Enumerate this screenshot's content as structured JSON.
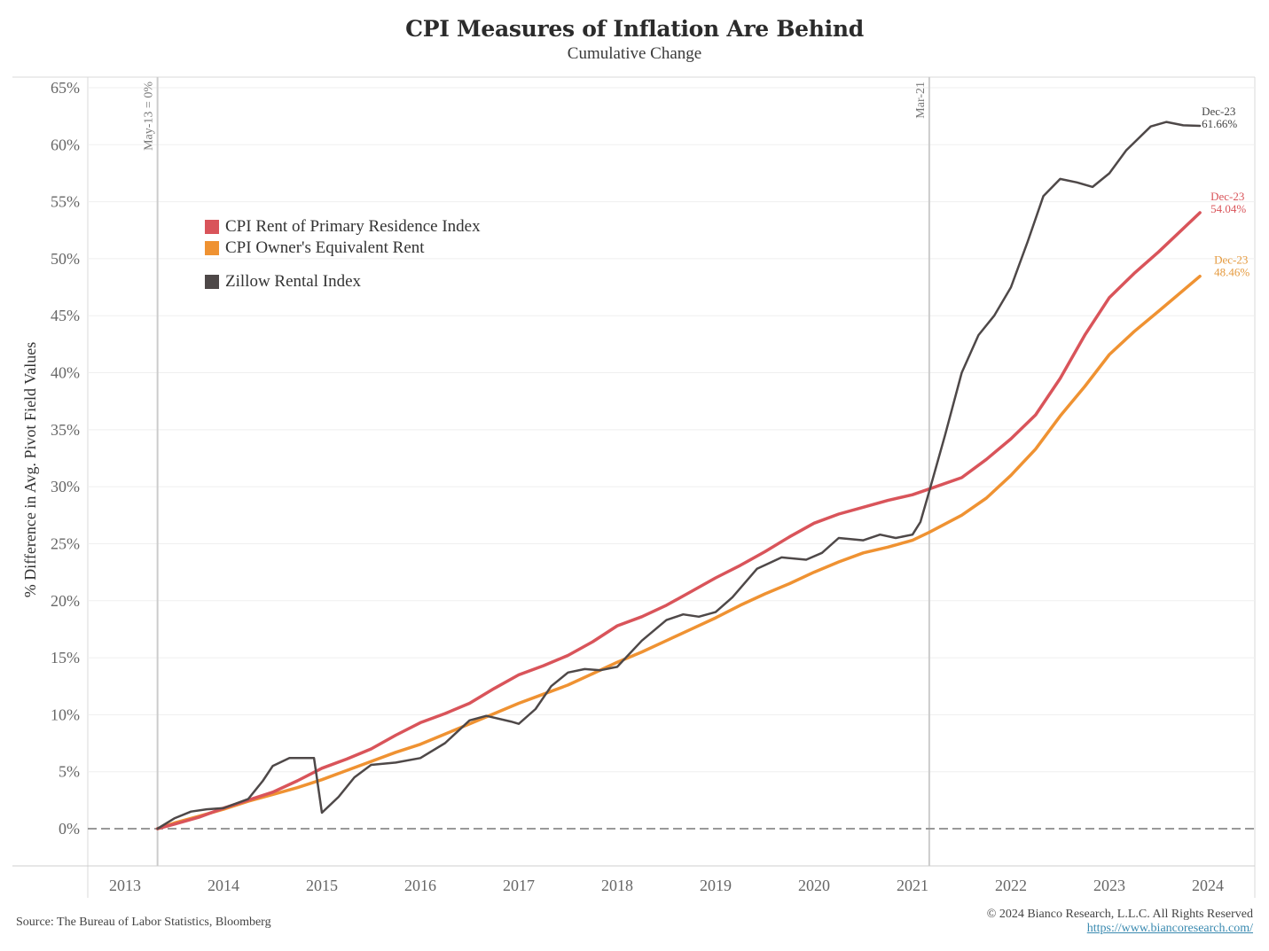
{
  "chart_data": {
    "type": "line",
    "title": "CPI Measures of Inflation Are Behind",
    "subtitle": "Cumulative Change",
    "xlabel": "",
    "ylabel": "% Difference in Avg. Pivot Field Values",
    "ylim": [
      0,
      65
    ],
    "xlim": [
      2013.0,
      2024.5
    ],
    "yticks": [
      0,
      5,
      10,
      15,
      20,
      25,
      30,
      35,
      40,
      45,
      50,
      55,
      60,
      65
    ],
    "ytick_labels": [
      "0%",
      "5%",
      "10%",
      "15%",
      "20%",
      "25%",
      "30%",
      "35%",
      "40%",
      "45%",
      "50%",
      "55%",
      "60%",
      "65%"
    ],
    "xticks": [
      2013,
      2014,
      2015,
      2016,
      2017,
      2018,
      2019,
      2020,
      2021,
      2022,
      2023,
      2024
    ],
    "xtick_labels": [
      "2013",
      "2014",
      "2015",
      "2016",
      "2017",
      "2018",
      "2019",
      "2020",
      "2021",
      "2022",
      "2023",
      "2024"
    ],
    "grid": true,
    "legend_position": "top-left",
    "reference_lines": [
      {
        "x": 2013.33,
        "label": "May-13 = 0%"
      },
      {
        "x": 2021.17,
        "label": "Mar-21"
      }
    ],
    "zero_line": {
      "y": 0,
      "style": "dashed"
    },
    "series": [
      {
        "name": "CPI Rent of Primary Residence Index",
        "color": "#d9545a",
        "end_label": {
          "date": "Dec-23",
          "value": "54.04%"
        },
        "points": [
          [
            2013.33,
            0
          ],
          [
            2013.5,
            0.4
          ],
          [
            2013.75,
            1.0
          ],
          [
            2014.0,
            1.8
          ],
          [
            2014.25,
            2.5
          ],
          [
            2014.5,
            3.2
          ],
          [
            2014.75,
            4.2
          ],
          [
            2015.0,
            5.3
          ],
          [
            2015.25,
            6.1
          ],
          [
            2015.5,
            7.0
          ],
          [
            2015.75,
            8.2
          ],
          [
            2016.0,
            9.3
          ],
          [
            2016.25,
            10.1
          ],
          [
            2016.5,
            11.0
          ],
          [
            2016.75,
            12.3
          ],
          [
            2017.0,
            13.5
          ],
          [
            2017.25,
            14.3
          ],
          [
            2017.5,
            15.2
          ],
          [
            2017.75,
            16.4
          ],
          [
            2018.0,
            17.8
          ],
          [
            2018.25,
            18.6
          ],
          [
            2018.5,
            19.6
          ],
          [
            2018.75,
            20.8
          ],
          [
            2019.0,
            22.0
          ],
          [
            2019.25,
            23.1
          ],
          [
            2019.5,
            24.3
          ],
          [
            2019.75,
            25.6
          ],
          [
            2020.0,
            26.8
          ],
          [
            2020.25,
            27.6
          ],
          [
            2020.5,
            28.2
          ],
          [
            2020.75,
            28.8
          ],
          [
            2021.0,
            29.3
          ],
          [
            2021.17,
            29.8
          ],
          [
            2021.5,
            30.8
          ],
          [
            2021.75,
            32.4
          ],
          [
            2022.0,
            34.2
          ],
          [
            2022.25,
            36.3
          ],
          [
            2022.5,
            39.5
          ],
          [
            2022.75,
            43.3
          ],
          [
            2023.0,
            46.6
          ],
          [
            2023.25,
            48.7
          ],
          [
            2023.5,
            50.6
          ],
          [
            2023.92,
            54.04
          ]
        ]
      },
      {
        "name": "CPI Owner's Equivalent Rent",
        "color": "#ef9232",
        "end_label": {
          "date": "Dec-23",
          "value": "48.46%"
        },
        "points": [
          [
            2013.33,
            0
          ],
          [
            2013.5,
            0.5
          ],
          [
            2013.75,
            1.1
          ],
          [
            2014.0,
            1.7
          ],
          [
            2014.25,
            2.4
          ],
          [
            2014.5,
            3.0
          ],
          [
            2014.75,
            3.6
          ],
          [
            2015.0,
            4.3
          ],
          [
            2015.25,
            5.1
          ],
          [
            2015.5,
            5.9
          ],
          [
            2015.75,
            6.7
          ],
          [
            2016.0,
            7.4
          ],
          [
            2016.25,
            8.3
          ],
          [
            2016.5,
            9.2
          ],
          [
            2016.75,
            10.1
          ],
          [
            2017.0,
            11.0
          ],
          [
            2017.25,
            11.8
          ],
          [
            2017.5,
            12.6
          ],
          [
            2017.75,
            13.6
          ],
          [
            2018.0,
            14.6
          ],
          [
            2018.25,
            15.5
          ],
          [
            2018.5,
            16.5
          ],
          [
            2018.75,
            17.5
          ],
          [
            2019.0,
            18.5
          ],
          [
            2019.25,
            19.6
          ],
          [
            2019.5,
            20.6
          ],
          [
            2019.75,
            21.5
          ],
          [
            2020.0,
            22.5
          ],
          [
            2020.25,
            23.4
          ],
          [
            2020.5,
            24.2
          ],
          [
            2020.75,
            24.7
          ],
          [
            2021.0,
            25.3
          ],
          [
            2021.17,
            26.0
          ],
          [
            2021.5,
            27.5
          ],
          [
            2021.75,
            29.0
          ],
          [
            2022.0,
            31.0
          ],
          [
            2022.25,
            33.3
          ],
          [
            2022.5,
            36.2
          ],
          [
            2022.75,
            38.8
          ],
          [
            2023.0,
            41.6
          ],
          [
            2023.25,
            43.6
          ],
          [
            2023.5,
            45.4
          ],
          [
            2023.92,
            48.46
          ]
        ]
      },
      {
        "name": "Zillow Rental Index",
        "color": "#4e4848",
        "end_label": {
          "date": "Dec-23",
          "value": "61.66%"
        },
        "points": [
          [
            2013.33,
            0
          ],
          [
            2013.5,
            0.9
          ],
          [
            2013.67,
            1.5
          ],
          [
            2013.83,
            1.7
          ],
          [
            2014.0,
            1.8
          ],
          [
            2014.25,
            2.6
          ],
          [
            2014.4,
            4.2
          ],
          [
            2014.5,
            5.5
          ],
          [
            2014.67,
            6.2
          ],
          [
            2014.83,
            6.2
          ],
          [
            2014.92,
            6.2
          ],
          [
            2015.0,
            1.4
          ],
          [
            2015.17,
            2.8
          ],
          [
            2015.33,
            4.5
          ],
          [
            2015.5,
            5.6
          ],
          [
            2015.75,
            5.8
          ],
          [
            2016.0,
            6.2
          ],
          [
            2016.25,
            7.5
          ],
          [
            2016.5,
            9.5
          ],
          [
            2016.67,
            9.9
          ],
          [
            2016.92,
            9.4
          ],
          [
            2017.0,
            9.2
          ],
          [
            2017.17,
            10.5
          ],
          [
            2017.33,
            12.5
          ],
          [
            2017.5,
            13.7
          ],
          [
            2017.67,
            14.0
          ],
          [
            2017.83,
            13.9
          ],
          [
            2018.0,
            14.2
          ],
          [
            2018.25,
            16.5
          ],
          [
            2018.5,
            18.3
          ],
          [
            2018.67,
            18.8
          ],
          [
            2018.83,
            18.6
          ],
          [
            2019.0,
            19.0
          ],
          [
            2019.17,
            20.3
          ],
          [
            2019.42,
            22.8
          ],
          [
            2019.67,
            23.8
          ],
          [
            2019.92,
            23.6
          ],
          [
            2020.08,
            24.2
          ],
          [
            2020.25,
            25.5
          ],
          [
            2020.5,
            25.3
          ],
          [
            2020.67,
            25.8
          ],
          [
            2020.83,
            25.5
          ],
          [
            2021.0,
            25.8
          ],
          [
            2021.08,
            26.9
          ],
          [
            2021.17,
            29.6
          ],
          [
            2021.33,
            34.5
          ],
          [
            2021.5,
            40.0
          ],
          [
            2021.67,
            43.3
          ],
          [
            2021.83,
            45.0
          ],
          [
            2022.0,
            47.5
          ],
          [
            2022.17,
            51.5
          ],
          [
            2022.33,
            55.5
          ],
          [
            2022.5,
            57.0
          ],
          [
            2022.67,
            56.7
          ],
          [
            2022.83,
            56.3
          ],
          [
            2023.0,
            57.5
          ],
          [
            2023.17,
            59.5
          ],
          [
            2023.42,
            61.6
          ],
          [
            2023.58,
            62.0
          ],
          [
            2023.75,
            61.7
          ],
          [
            2023.92,
            61.66
          ]
        ]
      }
    ]
  },
  "legend": {
    "items": [
      {
        "label": "CPI Rent of Primary Residence Index",
        "color": "#d9545a"
      },
      {
        "label": "CPI Owner's Equivalent Rent",
        "color": "#ef9232"
      },
      {
        "label": "Zillow Rental Index",
        "color": "#4e4848"
      }
    ]
  },
  "footer": {
    "source": "Source: The Bureau of Labor Statistics, Bloomberg",
    "copyright": "© 2024 Bianco Research, L.L.C. All Rights Reserved",
    "link": "https://www.biancoresearch.com/"
  }
}
